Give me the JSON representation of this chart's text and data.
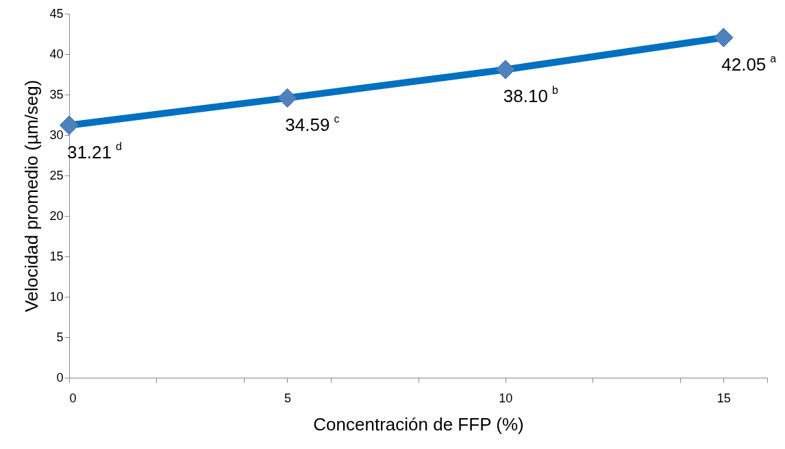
{
  "chart_data": {
    "type": "line",
    "xlabel": "Concentración de FFP (%)",
    "ylabel": "Velocidad promedio (µm/seg)",
    "x": [
      0,
      5,
      10,
      15
    ],
    "series": [
      {
        "color": "#0070c0",
        "values": [
          31.21,
          34.59,
          38.1,
          42.05
        ],
        "value_labels": [
          "31.21$^{d}$",
          "34.59$^{c}$",
          "38.10$^{b}$",
          "42.05$^{a}$"
        ]
      }
    ],
    "xlim": [
      0,
      16
    ],
    "xticks": [
      0,
      {
        "value": 2,
        "label": null
      },
      {
        "value": 4,
        "label": null
      },
      5,
      {
        "value": 6,
        "label": null
      },
      {
        "value": 8,
        "label": null
      },
      10,
      {
        "value": 12,
        "label": null
      },
      {
        "value": 14,
        "label": null
      },
      15,
      {
        "value": 16,
        "label": null
      }
    ],
    "ylim": [
      0,
      45
    ],
    "yticks": [
      0,
      5,
      10,
      15,
      20,
      25,
      30,
      35,
      40,
      45
    ],
    "grid": false,
    "marker": "diamond",
    "line_style": "solid"
  }
}
